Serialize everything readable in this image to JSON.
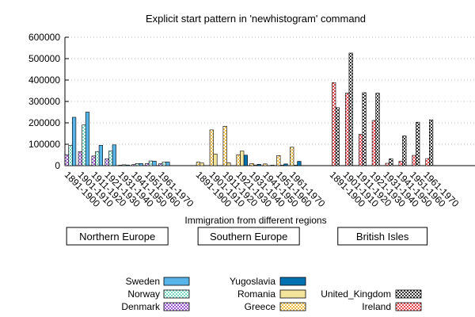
{
  "chart_data": {
    "type": "bar",
    "title": "Explicit start pattern in 'newhistogram' command",
    "xlabel": "Immigration from different regions",
    "ylabel": "",
    "ylim": [
      0,
      600000
    ],
    "yticks": [
      0,
      100000,
      200000,
      300000,
      400000,
      500000,
      600000
    ],
    "ytick_labels": [
      "0",
      "100000",
      "200000",
      "300000",
      "400000",
      "500000",
      "600000"
    ],
    "grid": true,
    "legend_position": "bottom",
    "decades": [
      "1891-1900",
      "1901-1910",
      "1911-1920",
      "1921-1930",
      "1931-1940",
      "1941-1950",
      "1951-1960",
      "1961-1970"
    ],
    "groups": [
      {
        "label": "Northern Europe",
        "series": [
          {
            "name": "Sweden",
            "color": "#56b4e9",
            "pattern": "solid",
            "values": [
              226000,
              250000,
              95000,
              97000,
              3000,
              10000,
              21000,
              17000
            ]
          },
          {
            "name": "Norway",
            "color": "#7fd9c8",
            "pattern": "checker",
            "values": [
              95000,
              190000,
              66000,
              68000,
              4000,
              10000,
              22000,
              16000
            ]
          },
          {
            "name": "Denmark",
            "color": "#9b59d0",
            "pattern": "checker",
            "values": [
              51000,
              65000,
              45000,
              32000,
              2000,
              5000,
              10000,
              9000
            ]
          }
        ]
      },
      {
        "label": "Southern Europe",
        "series": [
          {
            "name": "Yugoslavia",
            "color": "#0072b2",
            "pattern": "solid",
            "values": [
              0,
              0,
              0,
              49000,
              6000,
              2000,
              8000,
              20000
            ]
          },
          {
            "name": "Romania",
            "color": "#f2e49a",
            "pattern": "solid",
            "values": [
              12000,
              54000,
              13000,
              68000,
              3000,
              1000,
              2000,
              2000
            ]
          },
          {
            "name": "Greece",
            "color": "#f0c04a",
            "pattern": "checker",
            "values": [
              16000,
              167000,
              184000,
              51000,
              10000,
              8000,
              47000,
              86000
            ]
          }
        ]
      },
      {
        "label": "British Isles",
        "series": [
          {
            "name": "United_Kingdom",
            "color": "#333333",
            "pattern": "checker",
            "values": [
              271000,
              526000,
              341000,
              339000,
              32000,
              139000,
              203000,
              214000
            ]
          },
          {
            "name": "Ireland",
            "color": "#e8474f",
            "pattern": "checker",
            "values": [
              388000,
              339000,
              146000,
              211000,
              11000,
              20000,
              48000,
              33000
            ]
          }
        ]
      }
    ]
  }
}
